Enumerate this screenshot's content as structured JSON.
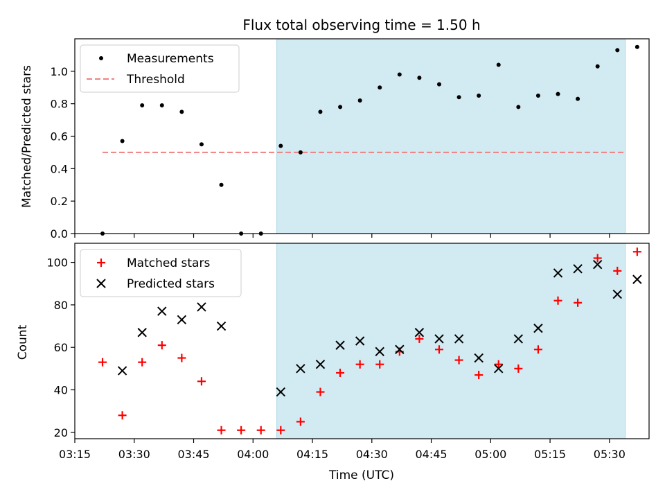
{
  "chart_data": [
    {
      "type": "scatter",
      "title": "Flux total observing time = 1.50 h",
      "ylabel": "Matched/Predicted stars",
      "xlim": [
        "03:15",
        "05:40"
      ],
      "ylim": [
        0,
        1.2
      ],
      "yticks": [
        "0.0",
        "0.2",
        "0.4",
        "0.6",
        "0.8",
        "1.0"
      ],
      "legend_position": "top-left",
      "highlight_span": [
        "04:06",
        "05:34"
      ],
      "highlight_color": "#add8e6",
      "threshold": {
        "name": "Threshold",
        "value": 0.5,
        "x_range": [
          "03:22",
          "05:34"
        ],
        "color": "#f08080"
      },
      "series": [
        {
          "name": "Measurements",
          "color": "#000000",
          "x": [
            "03:22",
            "03:27",
            "03:32",
            "03:37",
            "03:42",
            "03:47",
            "03:52",
            "03:57",
            "04:02",
            "04:07",
            "04:12",
            "04:17",
            "04:22",
            "04:27",
            "04:32",
            "04:37",
            "04:42",
            "04:47",
            "04:52",
            "04:57",
            "05:02",
            "05:07",
            "05:12",
            "05:17",
            "05:22",
            "05:27",
            "05:32",
            "05:37"
          ],
          "values": [
            0.0,
            0.57,
            0.79,
            0.79,
            0.75,
            0.55,
            0.3,
            0.0,
            0.0,
            0.54,
            0.5,
            0.75,
            0.78,
            0.82,
            0.9,
            0.98,
            0.96,
            0.92,
            0.84,
            0.85,
            1.04,
            0.78,
            0.85,
            0.86,
            0.83,
            1.03,
            1.13,
            1.15
          ]
        }
      ]
    },
    {
      "type": "scatter",
      "title": "",
      "xlabel": "Time (UTC)",
      "ylabel": "Count",
      "xlim": [
        "03:15",
        "05:40"
      ],
      "ylim": [
        17,
        109
      ],
      "xticks": [
        "03:15",
        "03:30",
        "03:45",
        "04:00",
        "04:15",
        "04:30",
        "04:45",
        "05:00",
        "05:15",
        "05:30"
      ],
      "yticks": [
        "20",
        "40",
        "60",
        "80",
        "100"
      ],
      "legend_position": "top-left",
      "highlight_span": [
        "04:06",
        "05:34"
      ],
      "highlight_color": "#add8e6",
      "series": [
        {
          "name": "Matched stars",
          "marker": "+",
          "color": "#ff0000",
          "x": [
            "03:22",
            "03:27",
            "03:32",
            "03:37",
            "03:42",
            "03:47",
            "03:52",
            "03:57",
            "04:02",
            "04:07",
            "04:12",
            "04:17",
            "04:22",
            "04:27",
            "04:32",
            "04:37",
            "04:42",
            "04:47",
            "04:52",
            "04:57",
            "05:02",
            "05:07",
            "05:12",
            "05:17",
            "05:22",
            "05:27",
            "05:32",
            "05:37"
          ],
          "values": [
            53,
            28,
            53,
            61,
            55,
            44,
            21,
            21,
            21,
            21,
            25,
            39,
            48,
            52,
            52,
            58,
            64,
            59,
            54,
            47,
            52,
            50,
            59,
            82,
            81,
            102,
            96,
            105
          ]
        },
        {
          "name": "Predicted stars",
          "marker": "x",
          "color": "#000000",
          "x": [
            "03:27",
            "03:32",
            "03:37",
            "03:42",
            "03:47",
            "03:52",
            "04:07",
            "04:12",
            "04:17",
            "04:22",
            "04:27",
            "04:32",
            "04:37",
            "04:42",
            "04:47",
            "04:52",
            "04:57",
            "05:02",
            "05:07",
            "05:12",
            "05:17",
            "05:22",
            "05:27",
            "05:32",
            "05:37"
          ],
          "values": [
            49,
            67,
            77,
            73,
            79,
            70,
            39,
            50,
            52,
            61,
            63,
            58,
            59,
            67,
            64,
            64,
            55,
            50,
            64,
            69,
            95,
            97,
            99,
            85,
            92
          ]
        }
      ]
    }
  ]
}
